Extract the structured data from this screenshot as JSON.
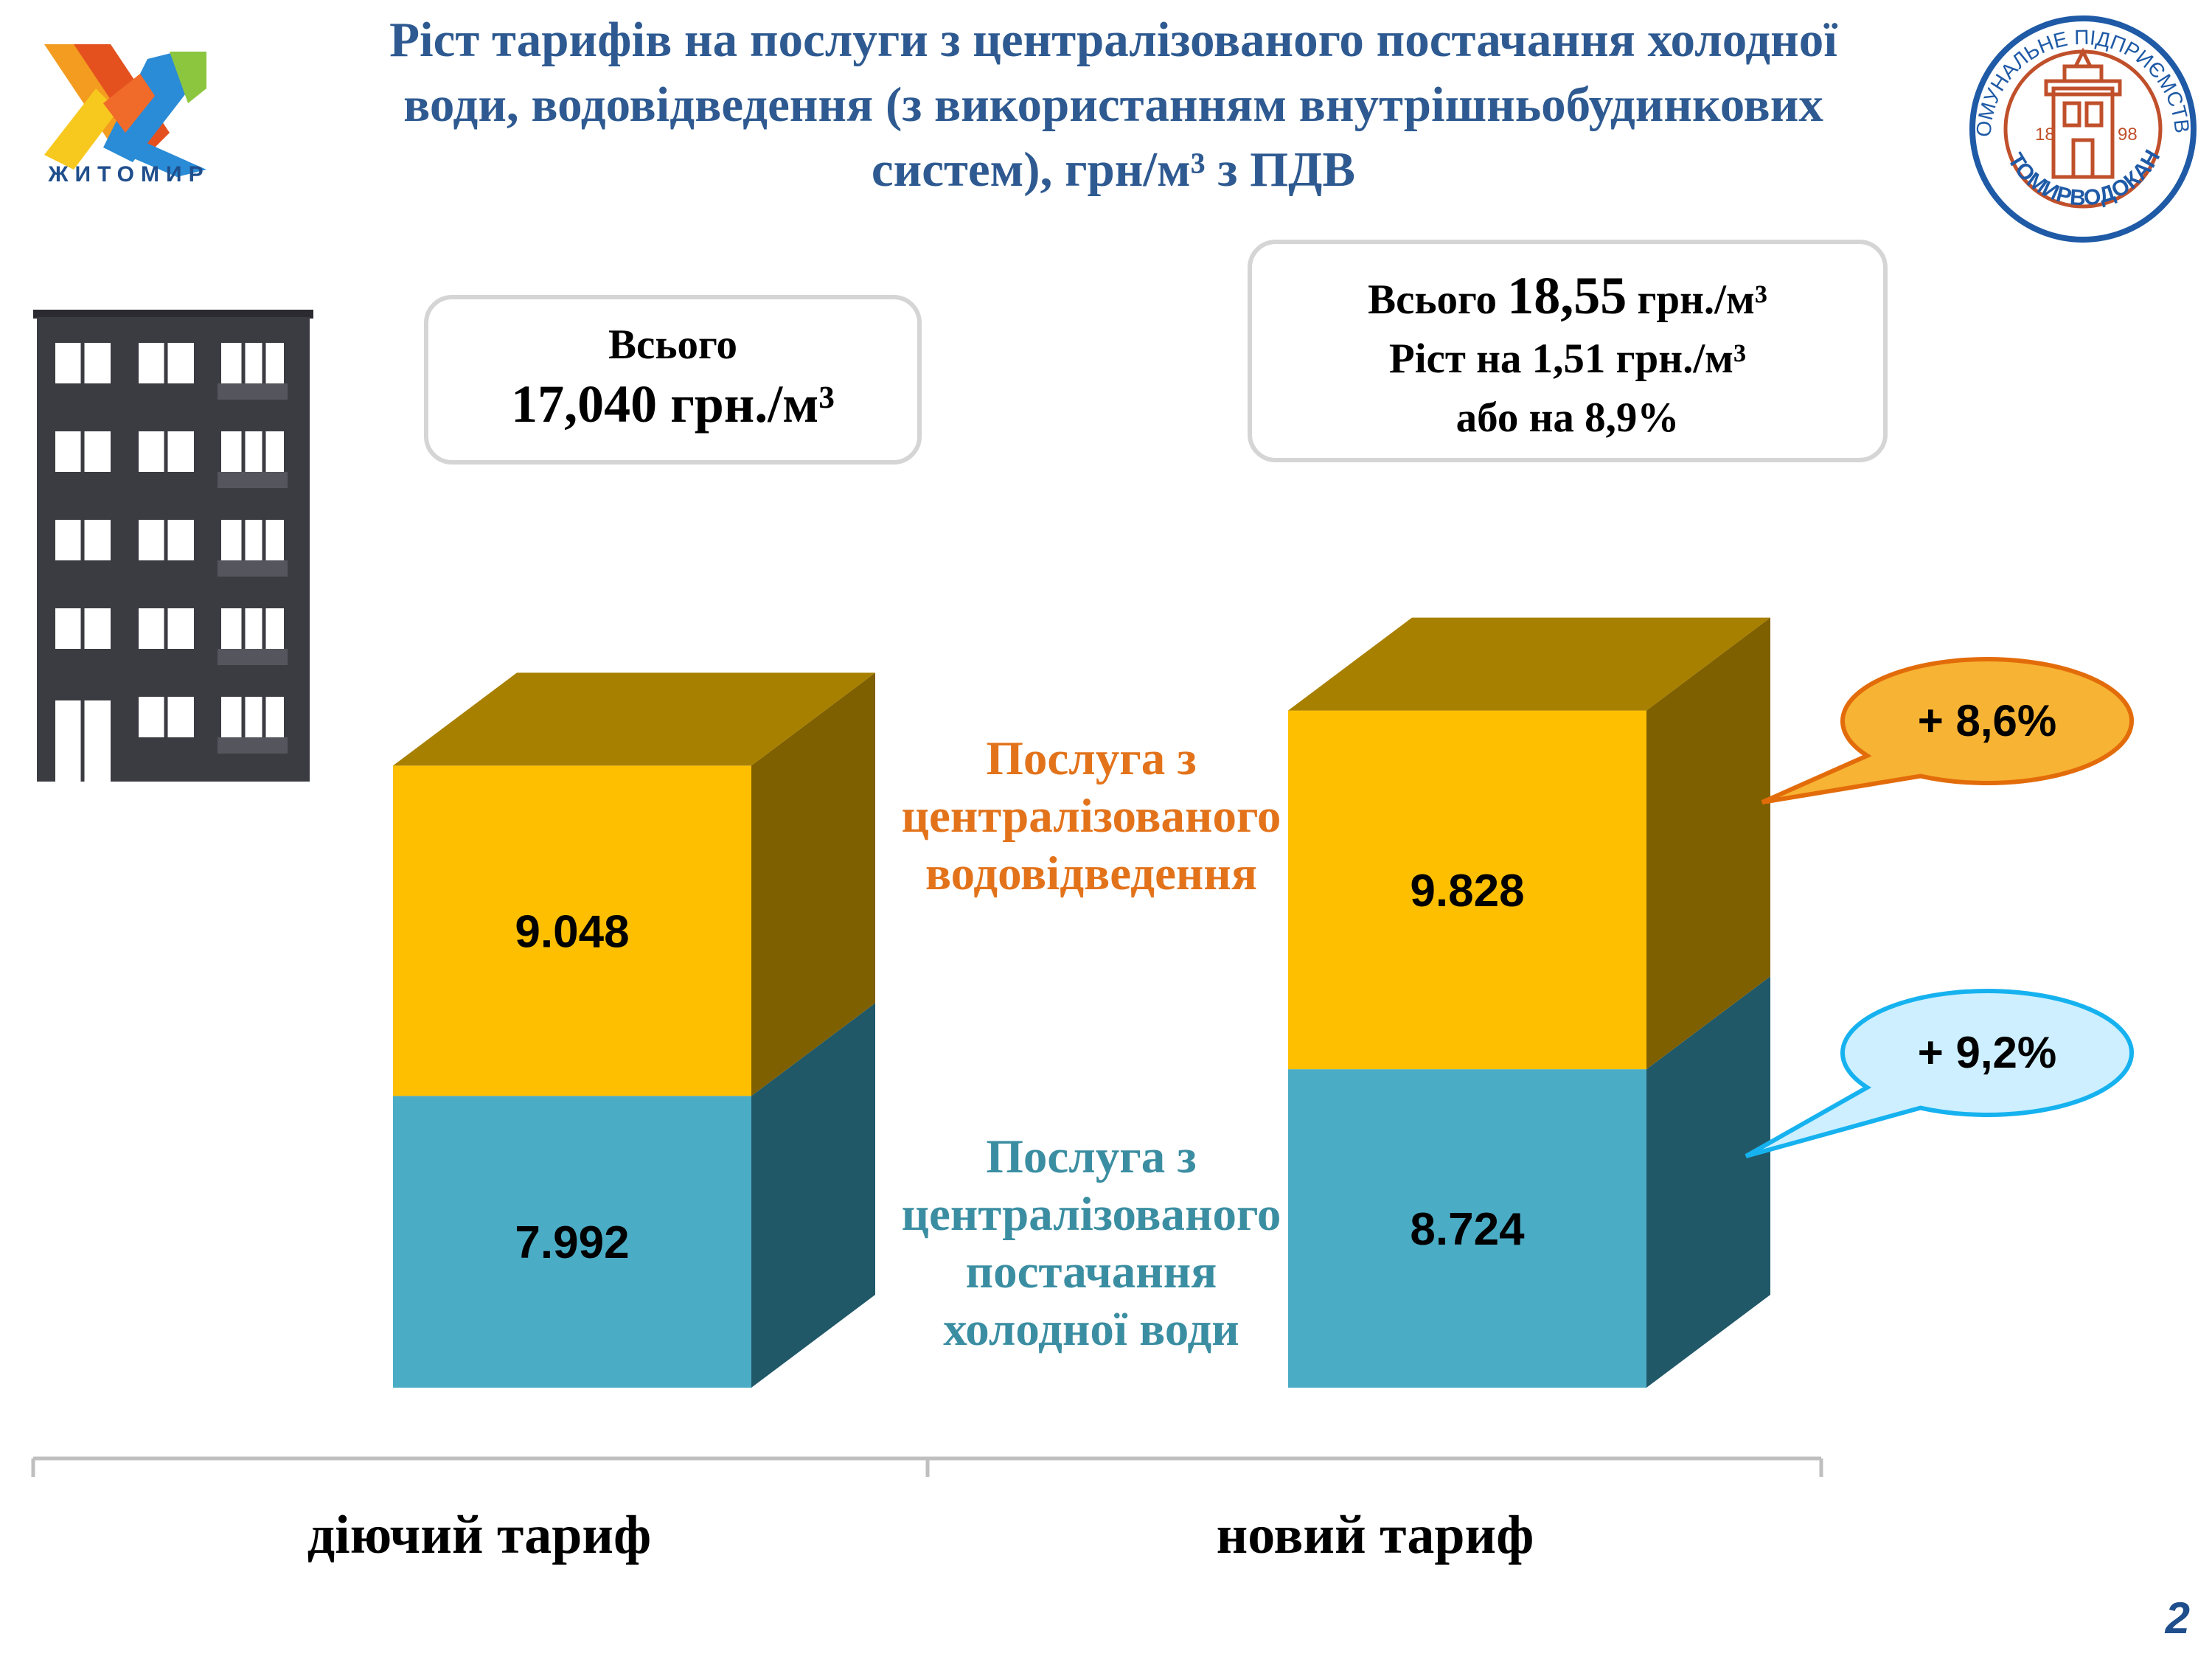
{
  "title": {
    "lines": [
      "Ріст тарифів на послуги з централізованого постачання холодної",
      "води, водовідведення (з використанням внутрішньобудинкових",
      "систем), грн/м³ з ПДВ"
    ]
  },
  "logos": {
    "city_name": "ЖИТОМИР",
    "seal_arc": "КОМУНАЛЬНЕ ПІДПРИЄМСТВО",
    "seal_name": "ЖИТОМИРВОДОКАНАЛ",
    "seal_year_left": "18",
    "seal_year_right": "98"
  },
  "totals": {
    "old": {
      "line1": "Всього",
      "line2": "17,040 грн./м³"
    },
    "new": {
      "line1_prefix": "Всього ",
      "line1_value": "18,55",
      "line1_suffix": " грн./м³",
      "line2": "Ріст на 1,51 грн./м³",
      "line3": "або на 8,9%"
    }
  },
  "legend": {
    "sewer": [
      "Послуга з",
      "централізованого",
      "водовідведення"
    ],
    "cold_water": [
      "Послуга з",
      "централізованого",
      "постачання",
      "холодної води"
    ]
  },
  "callouts": {
    "sewer": "+ 8,6%",
    "cold_water": "+ 9,2%"
  },
  "colors": {
    "title": "#2e5a91",
    "sewer_front": "#fdbf00",
    "sewer_side": "#7f6000",
    "sewer_top": "#a88000",
    "cold_front": "#4bacc6",
    "cold_side": "#215867",
    "sewer_legend": "#e3731b",
    "cold_legend": "#3b8ea2",
    "callout_sewer_fill": "#f7b334",
    "callout_sewer_stroke": "#e36c0a",
    "callout_cold_fill": "#cdefff",
    "callout_cold_stroke": "#16b2ef"
  },
  "chart_data": {
    "type": "bar",
    "stacked": true,
    "three_d": true,
    "categories": [
      "діючий тариф",
      "новий тариф"
    ],
    "series": [
      {
        "name": "Послуга з централізованого постачання холодної води",
        "values": [
          7.992,
          8.724
        ],
        "labels": [
          "7.992",
          "8.724"
        ]
      },
      {
        "name": "Послуга з централізованого водовідведення",
        "values": [
          9.048,
          9.828
        ],
        "labels": [
          "9.048",
          "9.828"
        ]
      }
    ],
    "ylim": [
      0,
      20.2
    ],
    "grid": false
  },
  "page_number": "2"
}
